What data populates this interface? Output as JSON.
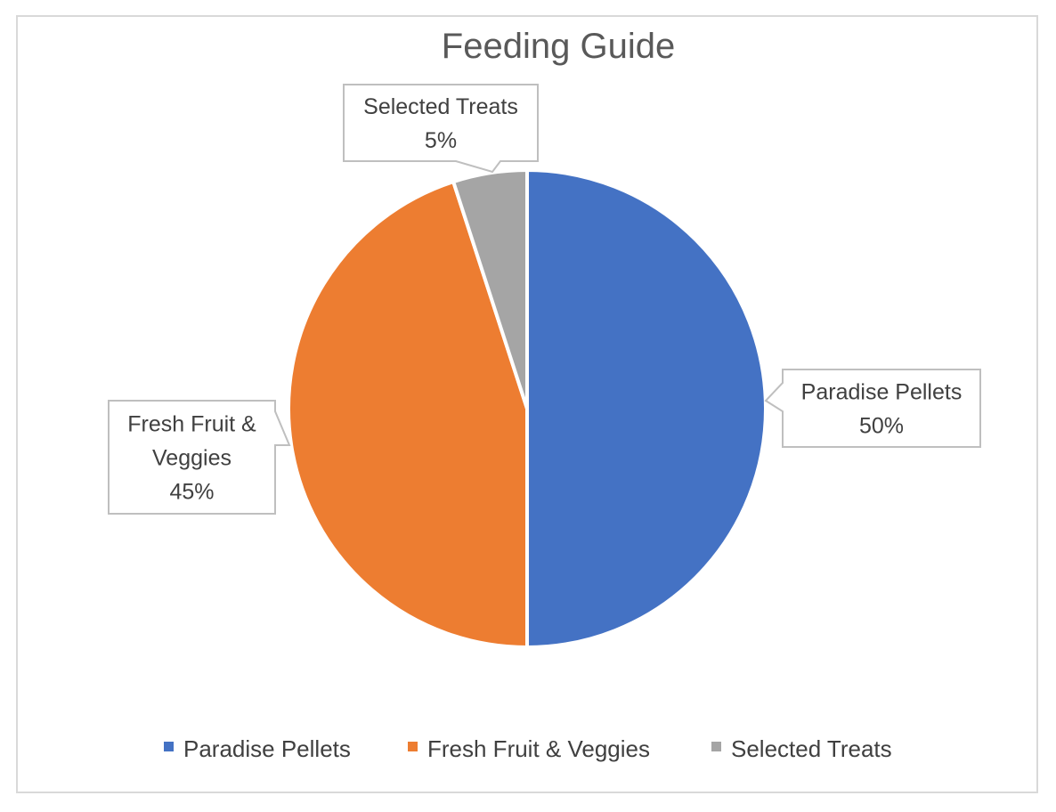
{
  "chart_data": {
    "type": "pie",
    "title": "Feeding Guide",
    "categories": [
      "Paradise Pellets",
      "Fresh Fruit & Veggies",
      "Selected Treats"
    ],
    "values": [
      50,
      45,
      5
    ],
    "value_format": "percent",
    "colors": [
      "#4472C4",
      "#ED7D31",
      "#A5A5A5"
    ],
    "data_labels": [
      {
        "name_lines": [
          "Paradise Pellets"
        ],
        "value_text": "50%"
      },
      {
        "name_lines": [
          "Fresh Fruit &",
          "Veggies"
        ],
        "value_text": "45%"
      },
      {
        "name_lines": [
          "Selected Treats"
        ],
        "value_text": "5%"
      }
    ],
    "legend": {
      "position": "bottom",
      "items": [
        "Paradise Pellets",
        "Fresh Fruit & Veggies",
        "Selected Treats"
      ]
    }
  }
}
